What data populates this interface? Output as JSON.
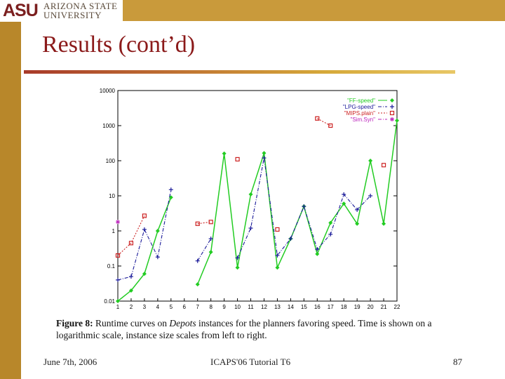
{
  "header": {
    "logo_mark": "ASU",
    "university_line1": "ARIZONA STATE",
    "university_line2": "UNIVERSITY",
    "colors": {
      "sidebar": "#b8872a",
      "topbar": "#c99a3b",
      "title": "#8b1a1a"
    }
  },
  "slide": {
    "title": "Results  (cont’d)"
  },
  "caption": {
    "label": "Figure 8:",
    "text_before": " Runtime curves on ",
    "emph": "Depots",
    "text_after": " instances for the planners favoring speed.  Time is shown on a logarithmic scale, instance size scales from left to right."
  },
  "footer": {
    "date": "June 7th, 2006",
    "center": "ICAPS'06 Tutorial T6",
    "page": "87"
  },
  "chart_data": {
    "type": "line",
    "yscale": "log",
    "ylim": [
      0.01,
      10000
    ],
    "xlim": [
      1,
      22
    ],
    "yticks": [
      "0.01",
      "0.1",
      "1",
      "10",
      "100",
      "1000",
      "10000"
    ],
    "xticks": [
      "1",
      "2",
      "3",
      "4",
      "5",
      "6",
      "7",
      "8",
      "9",
      "10",
      "11",
      "12",
      "13",
      "14",
      "15",
      "16",
      "17",
      "18",
      "19",
      "20",
      "21",
      "22"
    ],
    "legend_position": "top-right",
    "series": [
      {
        "name": "\"FF-speed\"",
        "color": "#22cc22",
        "marker": "diamond",
        "dash": "",
        "segments": [
          [
            [
              1,
              0.01
            ],
            [
              2,
              0.02
            ],
            [
              3,
              0.06
            ],
            [
              4,
              1
            ],
            [
              5,
              9
            ]
          ],
          [
            [
              7,
              0.03
            ],
            [
              8,
              0.25
            ],
            [
              9,
              160
            ],
            [
              10,
              0.09
            ],
            [
              11,
              11
            ],
            [
              12,
              165
            ],
            [
              13,
              0.09
            ],
            [
              14,
              0.6
            ],
            [
              15,
              5
            ],
            [
              16,
              0.22
            ],
            [
              17,
              1.7
            ],
            [
              18,
              6
            ],
            [
              19,
              1.6
            ],
            [
              20,
              100
            ],
            [
              21,
              1.6
            ],
            [
              22,
              1400
            ]
          ]
        ]
      },
      {
        "name": "\"LPG-speed\"",
        "color": "#1a1a99",
        "marker": "plus",
        "dash": "5,2,1,2",
        "segments": [
          [
            [
              1,
              0.04
            ],
            [
              2,
              0.05
            ],
            [
              3,
              1.1
            ],
            [
              4,
              0.18
            ],
            [
              5,
              15
            ]
          ],
          [
            [
              7,
              0.14
            ],
            [
              8,
              0.6
            ]
          ],
          [
            [
              10,
              0.17
            ],
            [
              11,
              1.2
            ],
            [
              12,
              120
            ],
            [
              13,
              0.2
            ],
            [
              14,
              0.6
            ],
            [
              15,
              5
            ],
            [
              16,
              0.3
            ],
            [
              17,
              0.8
            ],
            [
              18,
              11
            ],
            [
              19,
              4
            ],
            [
              20,
              10
            ]
          ]
        ]
      },
      {
        "name": "\"MIPS.plain\"",
        "color": "#cc2222",
        "marker": "square",
        "dash": "2,2",
        "segments": [
          [
            [
              1,
              0.2
            ],
            [
              2,
              0.45
            ],
            [
              3,
              2.7
            ]
          ],
          [
            [
              7,
              1.6
            ],
            [
              8,
              1.8
            ]
          ],
          [
            [
              10,
              110
            ]
          ],
          [
            [
              13,
              1.1
            ]
          ],
          [
            [
              16,
              1600
            ],
            [
              17,
              1000
            ]
          ],
          [
            [
              21,
              75
            ]
          ]
        ]
      },
      {
        "name": "\"Sim.Syn\"",
        "color": "#bb22bb",
        "marker": "star",
        "dash": "5,2,1,2",
        "segments": [
          [
            [
              1,
              1.8
            ]
          ]
        ]
      }
    ]
  }
}
